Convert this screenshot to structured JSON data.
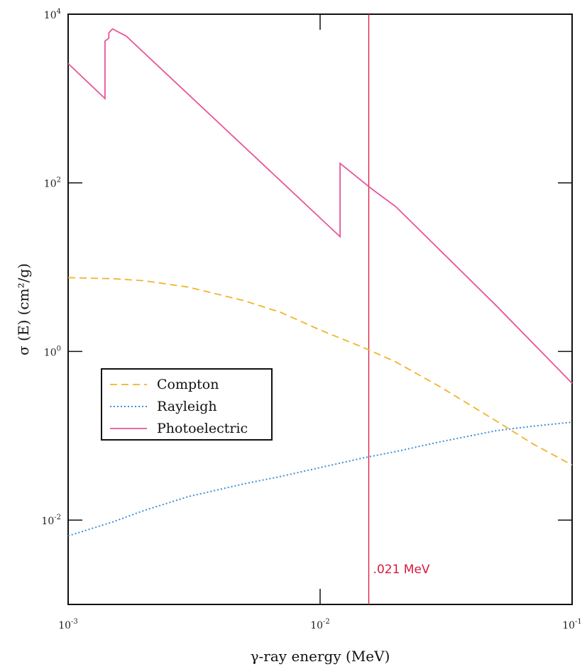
{
  "chart_data": {
    "type": "line",
    "xscale": "log",
    "yscale": "log",
    "xlim": [
      0.001,
      0.1
    ],
    "ylim": [
      0.001,
      10000
    ],
    "xlabel": "γ-ray energy (MeV)",
    "ylabel": "σ (E)  (cm²/g)",
    "x_ticks": [
      {
        "base": "10",
        "exp": "-3",
        "value": 0.001
      },
      {
        "base": "10",
        "exp": "-2",
        "value": 0.01
      },
      {
        "base": "10",
        "exp": "-1",
        "value": 0.1
      }
    ],
    "y_ticks": [
      {
        "base": "10",
        "exp": "4",
        "value": 10000
      },
      {
        "base": "10",
        "exp": "2",
        "value": 100
      },
      {
        "base": "10",
        "exp": "0",
        "value": 1
      },
      {
        "base": "10",
        "exp": "-2",
        "value": 0.01
      }
    ],
    "legend_position": "left",
    "series": [
      {
        "name": "Compton",
        "style": "dashed",
        "color": "#f0b429",
        "x": [
          0.001,
          0.0015,
          0.002,
          0.003,
          0.005,
          0.007,
          0.01,
          0.015,
          0.02,
          0.03,
          0.05,
          0.07,
          0.1
        ],
        "y": [
          7.5,
          7.3,
          6.9,
          5.8,
          4.0,
          2.9,
          1.8,
          1.1,
          0.75,
          0.38,
          0.15,
          0.08,
          0.045
        ]
      },
      {
        "name": "Rayleigh",
        "style": "dotted",
        "color": "#3b8fd6",
        "x": [
          0.001,
          0.0015,
          0.002,
          0.003,
          0.005,
          0.007,
          0.01,
          0.015,
          0.02,
          0.03,
          0.05,
          0.07,
          0.1
        ],
        "y": [
          0.0065,
          0.0095,
          0.013,
          0.019,
          0.027,
          0.033,
          0.042,
          0.055,
          0.065,
          0.085,
          0.115,
          0.13,
          0.145
        ]
      },
      {
        "name": "Photoelectric",
        "style": "solid",
        "color": "#e8559b",
        "x": [
          0.001,
          0.0014,
          0.0014,
          0.00145,
          0.00145,
          0.0015,
          0.0017,
          0.012,
          0.012,
          0.016,
          0.02,
          0.05,
          0.1
        ],
        "y": [
          2600,
          1000,
          4800,
          5200,
          6000,
          6700,
          5500,
          23,
          170,
          85,
          52,
          3.5,
          0.42
        ]
      }
    ],
    "annotation": {
      "text": ".021 MeV",
      "x": 0.0156,
      "color": "#d8183c"
    }
  }
}
